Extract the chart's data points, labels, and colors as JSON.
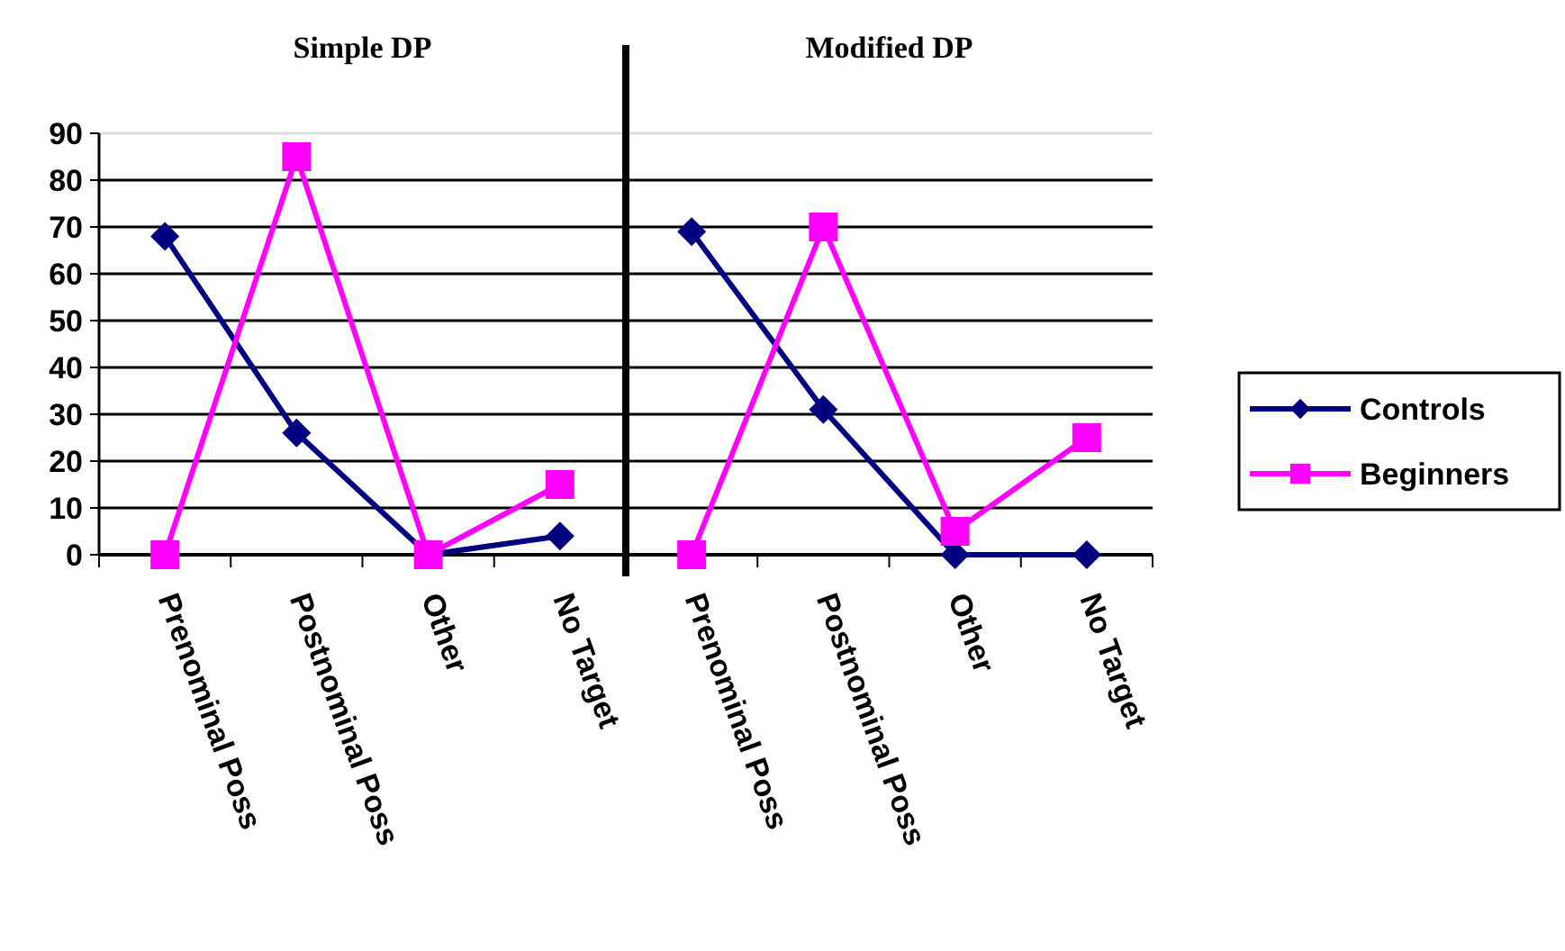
{
  "chart_data": [
    {
      "type": "line",
      "title": "Simple DP",
      "categories": [
        "Prenominal Poss",
        "Postnominal Poss",
        "Other",
        "No Target"
      ],
      "series": [
        {
          "color": "#000080",
          "marker": "diamond",
          "values": [
            68,
            26,
            0,
            4
          ]
        },
        {
          "color": "#ff00ff",
          "marker": "square",
          "values": [
            0,
            85,
            0,
            15
          ]
        }
      ],
      "ylim": [
        0,
        90
      ],
      "yticks": [
        0,
        10,
        20,
        30,
        40,
        50,
        60,
        70,
        80,
        90
      ],
      "grid": "y",
      "legend": false
    },
    {
      "type": "line",
      "title": "Modified DP",
      "categories": [
        "Prenominal Poss",
        "Postnominal Poss",
        "Other",
        "No Target"
      ],
      "series": [
        {
          "name": "Controls",
          "color": "#000080",
          "marker": "diamond",
          "values": [
            69,
            31,
            0,
            0
          ]
        },
        {
          "name": "Beginners",
          "color": "#ff00ff",
          "marker": "square",
          "values": [
            0,
            70,
            5,
            25
          ]
        }
      ],
      "ylim": [
        0,
        90
      ],
      "yticks": [
        0,
        10,
        20,
        30,
        40,
        50,
        60,
        70,
        80,
        90
      ],
      "grid": "y",
      "legend": "right",
      "tick_labels": "x"
    }
  ]
}
